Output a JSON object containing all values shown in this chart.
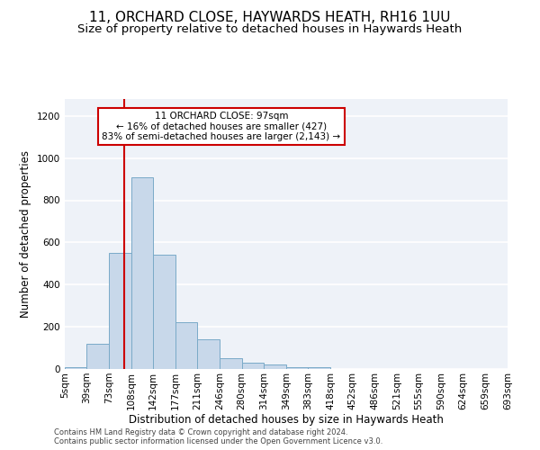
{
  "title_line1": "11, ORCHARD CLOSE, HAYWARDS HEATH, RH16 1UU",
  "title_line2": "Size of property relative to detached houses in Haywards Heath",
  "xlabel": "Distribution of detached houses by size in Haywards Heath",
  "ylabel": "Number of detached properties",
  "bar_color": "#c8d8ea",
  "bar_edge_color": "#7aaac8",
  "background_color": "#eef2f8",
  "grid_color": "#ffffff",
  "bins": [
    5,
    39,
    73,
    108,
    142,
    177,
    211,
    246,
    280,
    314,
    349,
    383,
    418,
    452,
    486,
    521,
    555,
    590,
    624,
    659,
    693
  ],
  "bin_labels": [
    "5sqm",
    "39sqm",
    "73sqm",
    "108sqm",
    "142sqm",
    "177sqm",
    "211sqm",
    "246sqm",
    "280sqm",
    "314sqm",
    "349sqm",
    "383sqm",
    "418sqm",
    "452sqm",
    "486sqm",
    "521sqm",
    "555sqm",
    "590sqm",
    "624sqm",
    "659sqm",
    "693sqm"
  ],
  "counts": [
    8,
    120,
    550,
    910,
    540,
    220,
    140,
    52,
    32,
    20,
    10,
    8,
    0,
    0,
    0,
    0,
    0,
    0,
    0,
    0
  ],
  "property_size": 97,
  "red_line_color": "#cc0000",
  "annotation_text": "11 ORCHARD CLOSE: 97sqm\n← 16% of detached houses are smaller (427)\n83% of semi-detached houses are larger (2,143) →",
  "annotation_box_color": "#ffffff",
  "annotation_box_edge_color": "#cc0000",
  "ylim": [
    0,
    1280
  ],
  "yticks": [
    0,
    200,
    400,
    600,
    800,
    1000,
    1200
  ],
  "footer_line1": "Contains HM Land Registry data © Crown copyright and database right 2024.",
  "footer_line2": "Contains public sector information licensed under the Open Government Licence v3.0.",
  "title_fontsize": 11,
  "subtitle_fontsize": 9.5,
  "axis_fontsize": 8.5,
  "tick_fontsize": 7.5,
  "annotation_fontsize": 7.5,
  "footer_fontsize": 6.0
}
